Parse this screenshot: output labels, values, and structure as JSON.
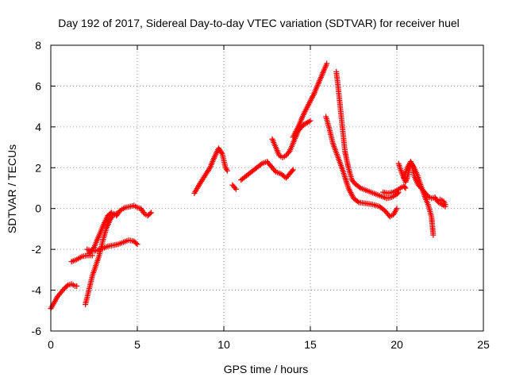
{
  "chart_data": {
    "type": "scatter",
    "title": "Day 192 of 2017, Sidereal Day-to-day VTEC variation (SDTVAR) for receiver huel",
    "xlabel": "GPS time / hours",
    "ylabel": "SDTVAR / TECUs",
    "xlim": [
      0,
      25
    ],
    "ylim": [
      -6,
      8
    ],
    "xticks": [
      0,
      5,
      10,
      15,
      20,
      25
    ],
    "yticks": [
      -6,
      -4,
      -2,
      0,
      2,
      4,
      6,
      8
    ],
    "grid": true,
    "legend": "none",
    "marker": "+",
    "colors": {
      "series": "#ff0000",
      "grid": "#999999",
      "axis": "#000000"
    },
    "series": [
      {
        "segments": [
          [
            [
              0.0,
              -4.9
            ],
            [
              0.2,
              -4.6
            ],
            [
              0.4,
              -4.3
            ],
            [
              0.6,
              -4.1
            ],
            [
              0.8,
              -3.9
            ],
            [
              1.0,
              -3.75
            ],
            [
              1.2,
              -3.7
            ],
            [
              1.4,
              -3.8
            ],
            [
              1.5,
              -3.8
            ]
          ],
          [
            [
              1.2,
              -2.6
            ],
            [
              1.5,
              -2.5
            ],
            [
              1.8,
              -2.35
            ],
            [
              2.1,
              -2.3
            ],
            [
              2.4,
              -2.3
            ]
          ],
          [
            [
              2.1,
              -2.0
            ],
            [
              2.4,
              -2.1
            ],
            [
              2.7,
              -2.05
            ],
            [
              3.0,
              -1.95
            ],
            [
              3.3,
              -1.85
            ],
            [
              3.6,
              -1.8
            ],
            [
              3.9,
              -1.75
            ],
            [
              4.2,
              -1.65
            ],
            [
              4.5,
              -1.55
            ],
            [
              4.8,
              -1.6
            ],
            [
              5.0,
              -1.75
            ]
          ],
          [
            [
              2.0,
              -4.7
            ],
            [
              2.2,
              -4.0
            ],
            [
              2.4,
              -3.3
            ],
            [
              2.6,
              -2.8
            ],
            [
              2.8,
              -2.3
            ],
            [
              3.0,
              -1.6
            ],
            [
              3.2,
              -1.0
            ],
            [
              3.4,
              -0.6
            ],
            [
              3.6,
              -0.3
            ],
            [
              3.8,
              -0.25
            ]
          ],
          [
            [
              2.2,
              -2.2
            ],
            [
              2.5,
              -1.9
            ],
            [
              2.7,
              -1.5
            ],
            [
              2.9,
              -1.1
            ],
            [
              3.1,
              -0.7
            ],
            [
              3.3,
              -0.35
            ],
            [
              3.5,
              -0.2
            ],
            [
              3.7,
              -0.3
            ]
          ],
          [
            [
              3.8,
              -0.35
            ],
            [
              4.0,
              -0.1
            ],
            [
              4.3,
              0.05
            ],
            [
              4.6,
              0.1
            ],
            [
              4.8,
              0.15
            ],
            [
              5.0,
              0.05
            ],
            [
              5.2,
              0.0
            ],
            [
              5.4,
              -0.25
            ],
            [
              5.6,
              -0.35
            ],
            [
              5.8,
              -0.2
            ]
          ],
          [
            [
              8.3,
              0.75
            ],
            [
              8.6,
              1.2
            ],
            [
              8.9,
              1.6
            ],
            [
              9.2,
              2.0
            ],
            [
              9.5,
              2.6
            ],
            [
              9.7,
              2.95
            ],
            [
              9.9,
              2.7
            ],
            [
              10.1,
              2.0
            ],
            [
              10.2,
              1.85
            ]
          ],
          [
            [
              10.5,
              1.15
            ],
            [
              10.7,
              0.95
            ]
          ],
          [
            [
              11.0,
              1.4
            ],
            [
              11.3,
              1.6
            ],
            [
              11.6,
              1.8
            ],
            [
              11.9,
              2.0
            ],
            [
              12.2,
              2.2
            ],
            [
              12.5,
              2.3
            ],
            [
              12.8,
              2.0
            ],
            [
              13.0,
              1.8
            ],
            [
              13.3,
              1.7
            ],
            [
              13.6,
              1.5
            ],
            [
              13.9,
              1.8
            ],
            [
              14.0,
              1.9
            ]
          ],
          [
            [
              12.8,
              3.4
            ],
            [
              13.0,
              3.0
            ],
            [
              13.2,
              2.6
            ],
            [
              13.4,
              2.5
            ],
            [
              13.6,
              2.6
            ],
            [
              13.8,
              2.8
            ],
            [
              14.0,
              3.2
            ],
            [
              14.3,
              3.8
            ],
            [
              14.6,
              4.1
            ],
            [
              15.0,
              4.3
            ]
          ],
          [
            [
              14.0,
              3.5
            ],
            [
              14.3,
              4.0
            ],
            [
              14.6,
              4.6
            ],
            [
              14.9,
              5.1
            ],
            [
              15.2,
              5.6
            ],
            [
              15.5,
              6.2
            ],
            [
              15.8,
              6.8
            ],
            [
              15.95,
              7.1
            ]
          ],
          [
            [
              15.9,
              4.5
            ],
            [
              16.1,
              3.9
            ],
            [
              16.3,
              3.2
            ],
            [
              16.6,
              2.5
            ],
            [
              16.9,
              1.8
            ],
            [
              17.2,
              1.0
            ],
            [
              17.5,
              0.5
            ],
            [
              17.8,
              0.3
            ],
            [
              18.2,
              0.25
            ],
            [
              18.6,
              0.2
            ],
            [
              19.0,
              0.1
            ],
            [
              19.3,
              -0.1
            ],
            [
              19.6,
              -0.4
            ],
            [
              19.8,
              -0.3
            ],
            [
              20.0,
              0.0
            ]
          ],
          [
            [
              16.5,
              6.7
            ],
            [
              16.6,
              6.0
            ],
            [
              16.7,
              5.2
            ],
            [
              16.8,
              4.4
            ],
            [
              16.9,
              3.6
            ],
            [
              17.0,
              2.8
            ],
            [
              17.2,
              2.0
            ],
            [
              17.4,
              1.4
            ],
            [
              17.6,
              1.2
            ],
            [
              17.9,
              1.0
            ],
            [
              18.2,
              0.9
            ],
            [
              18.5,
              0.8
            ],
            [
              18.8,
              0.7
            ],
            [
              19.1,
              0.6
            ],
            [
              19.4,
              0.5
            ],
            [
              19.7,
              0.55
            ],
            [
              20.0,
              0.7
            ],
            [
              20.1,
              0.8
            ]
          ],
          [
            [
              19.2,
              0.8
            ],
            [
              19.5,
              0.75
            ],
            [
              19.8,
              0.8
            ],
            [
              20.1,
              0.95
            ],
            [
              20.4,
              1.1
            ],
            [
              20.5,
              1.0
            ]
          ],
          [
            [
              20.1,
              2.2
            ],
            [
              20.3,
              1.7
            ],
            [
              20.5,
              1.3
            ],
            [
              20.6,
              1.5
            ],
            [
              20.8,
              2.2
            ],
            [
              20.9,
              2.1
            ],
            [
              21.0,
              1.6
            ],
            [
              21.2,
              1.2
            ],
            [
              21.4,
              1.0
            ],
            [
              21.6,
              0.8
            ],
            [
              21.8,
              0.6
            ],
            [
              22.0,
              0.5
            ],
            [
              22.2,
              0.55
            ],
            [
              22.4,
              0.3
            ],
            [
              22.6,
              0.2
            ],
            [
              22.8,
              0.1
            ]
          ],
          [
            [
              20.4,
              1.5
            ],
            [
              20.6,
              2.0
            ],
            [
              20.8,
              2.3
            ],
            [
              21.0,
              2.0
            ],
            [
              21.2,
              1.6
            ],
            [
              21.4,
              1.1
            ],
            [
              21.6,
              0.6
            ],
            [
              21.8,
              0.2
            ],
            [
              22.0,
              -0.4
            ],
            [
              22.1,
              -1.3
            ]
          ],
          [
            [
              22.5,
              0.45
            ],
            [
              22.7,
              0.35
            ],
            [
              22.8,
              0.2
            ]
          ]
        ]
      }
    ]
  }
}
